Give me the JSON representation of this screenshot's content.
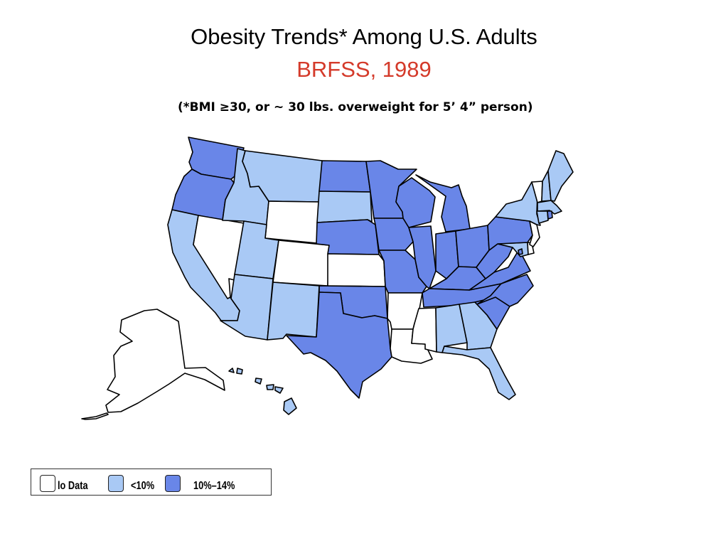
{
  "header": {
    "title": "Obesity Trends* Among U.S. Adults",
    "subtitle": "BRFSS, 1989",
    "note": "(*BMI ≥30, or ~ 30 lbs. overweight for 5’ 4” person)"
  },
  "colors": {
    "no_data": "#ffffff",
    "under_10": "#a9c9f5",
    "from_10_to_14": "#6986e8",
    "subtitle_red": "#d43a2a",
    "border": "#000000"
  },
  "legend": {
    "items": [
      {
        "label": "lo Data",
        "category": "no_data"
      },
      {
        "label": "<10%",
        "category": "under_10"
      },
      {
        "label": "10%–14%",
        "category": "from_10_to_14"
      }
    ]
  },
  "map": {
    "categories": {
      "WA": "from_10_to_14",
      "OR": "from_10_to_14",
      "CA": "under_10",
      "NV": "no_data",
      "ID": "under_10",
      "MT": "under_10",
      "WY": "no_data",
      "UT": "under_10",
      "CO": "no_data",
      "AZ": "under_10",
      "NM": "under_10",
      "ND": "from_10_to_14",
      "SD": "under_10",
      "NE": "from_10_to_14",
      "KS": "no_data",
      "OK": "from_10_to_14",
      "TX": "from_10_to_14",
      "MN": "from_10_to_14",
      "IA": "from_10_to_14",
      "MO": "from_10_to_14",
      "AR": "no_data",
      "LA": "no_data",
      "WI": "from_10_to_14",
      "IL": "from_10_to_14",
      "MI": "from_10_to_14",
      "IN": "from_10_to_14",
      "OH": "from_10_to_14",
      "KY": "from_10_to_14",
      "TN": "from_10_to_14",
      "MS": "no_data",
      "AL": "under_10",
      "GA": "under_10",
      "FL": "under_10",
      "SC": "from_10_to_14",
      "NC": "from_10_to_14",
      "VA": "from_10_to_14",
      "WV": "from_10_to_14",
      "PA": "from_10_to_14",
      "NY": "under_10",
      "VT": "no_data",
      "NH": "under_10",
      "ME": "under_10",
      "MA": "under_10",
      "CT": "under_10",
      "RI": "from_10_to_14",
      "NJ": "no_data",
      "DE": "no_data",
      "MD": "under_10",
      "DC": "from_10_to_14",
      "AK": "no_data",
      "HI": "under_10"
    }
  }
}
